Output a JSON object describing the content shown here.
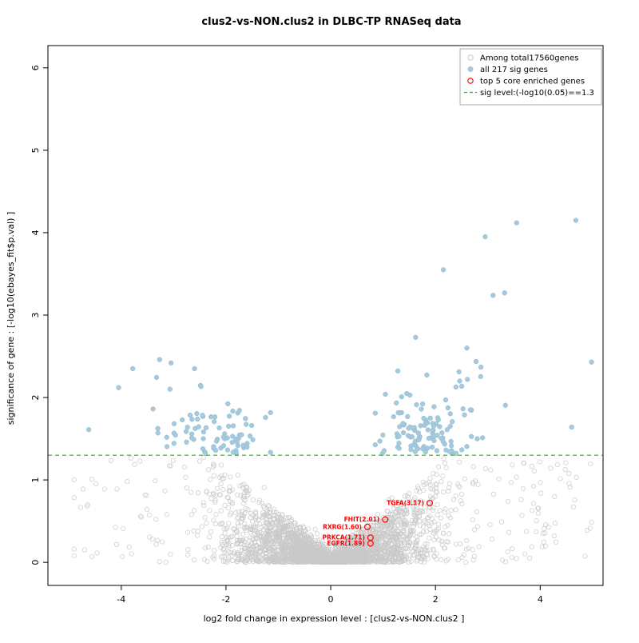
{
  "chart_data": {
    "type": "scatter",
    "title": "clus2-vs-NON.clus2 in DLBC-TP RNASeq data",
    "xlabel": "log2 fold change in expression level : [clus2-vs-NON.clus2 ]",
    "ylabel": "significance of gene : [-log10(ebayes_fit$p.val) ]",
    "xlim": [
      -5.4,
      5.2
    ],
    "ylim": [
      -0.28,
      6.27
    ],
    "xticks": [
      -4,
      -2,
      0,
      2,
      4
    ],
    "yticks": [
      0,
      1,
      2,
      3,
      4,
      5,
      6
    ],
    "grid": false,
    "legend_position": "top-right",
    "sig_line": {
      "y": 1.3,
      "color": "#00cc00",
      "style": "dashed",
      "label": "sig level:(-log10(0.05)==1.3"
    },
    "legend": [
      {
        "label": "Among total17560genes",
        "marker": "open-circle",
        "color": "#c9c9c9"
      },
      {
        "label": "all 217 sig genes",
        "marker": "filled-circle",
        "color": "#a5cade"
      },
      {
        "label": "top 5 core enriched genes",
        "marker": "open-circle",
        "color": "#ff0000"
      },
      {
        "label": "sig level:(-log10(0.05)==1.3",
        "marker": "dashed-line",
        "color": "#00cc00"
      }
    ],
    "series": {
      "background": {
        "name": "Among total17560genes",
        "total_genes": 17560,
        "color": "#c9c9c9",
        "marker": "open-circle",
        "x_range": [
          -4.9,
          5.05
        ],
        "y_range": [
          0,
          1.28
        ],
        "render_points": 3200,
        "seed": 7
      },
      "significant": {
        "name": "all 217 sig genes",
        "count": 217,
        "color": "#a5cade",
        "marker": "filled-circle",
        "y_min": 1.32,
        "right_lobe": {
          "center": 1.75,
          "sd": 0.45,
          "count": 110
        },
        "left_lobe": {
          "center": -2.05,
          "sd": 0.5,
          "count": 70
        },
        "scatter_count": 21,
        "seed": 21,
        "outliers": [
          {
            "x": -4.62,
            "y": 1.61
          },
          {
            "x": -4.05,
            "y": 2.12
          },
          {
            "x": -3.78,
            "y": 2.35
          },
          {
            "x": -3.3,
            "y": 1.57
          },
          {
            "x": -3.05,
            "y": 2.42
          },
          {
            "x": -2.6,
            "y": 2.35
          },
          {
            "x": 1.62,
            "y": 2.73
          },
          {
            "x": 2.15,
            "y": 3.55
          },
          {
            "x": 2.6,
            "y": 2.6
          },
          {
            "x": 2.95,
            "y": 3.95
          },
          {
            "x": 3.1,
            "y": 3.24
          },
          {
            "x": 3.32,
            "y": 3.27
          },
          {
            "x": 3.55,
            "y": 4.12
          },
          {
            "x": 4.68,
            "y": 4.15
          },
          {
            "x": 4.98,
            "y": 2.43
          },
          {
            "x": 4.6,
            "y": 1.64
          }
        ]
      },
      "top_enriched": {
        "name": "top 5 core enriched genes",
        "color": "#ff0000",
        "marker": "open-circle",
        "points": [
          {
            "gene": "TGFA",
            "value": "3.17",
            "label": "TGFA(3.17)",
            "x": 1.89,
            "y": 0.72
          },
          {
            "gene": "FHIT",
            "value": "2.01",
            "label": "FHIT(2.01)",
            "x": 1.04,
            "y": 0.52
          },
          {
            "gene": "RXRG",
            "value": "1.60",
            "label": "RXRG(1.60)",
            "x": 0.7,
            "y": 0.43
          },
          {
            "gene": "PRKCA",
            "value": "1.71",
            "label": "PRKCA(1.71)",
            "x": 0.76,
            "y": 0.3
          },
          {
            "gene": "EGFR",
            "value": "1.89",
            "label": "EGFR(1.89)",
            "x": 0.76,
            "y": 0.23
          }
        ]
      }
    }
  }
}
